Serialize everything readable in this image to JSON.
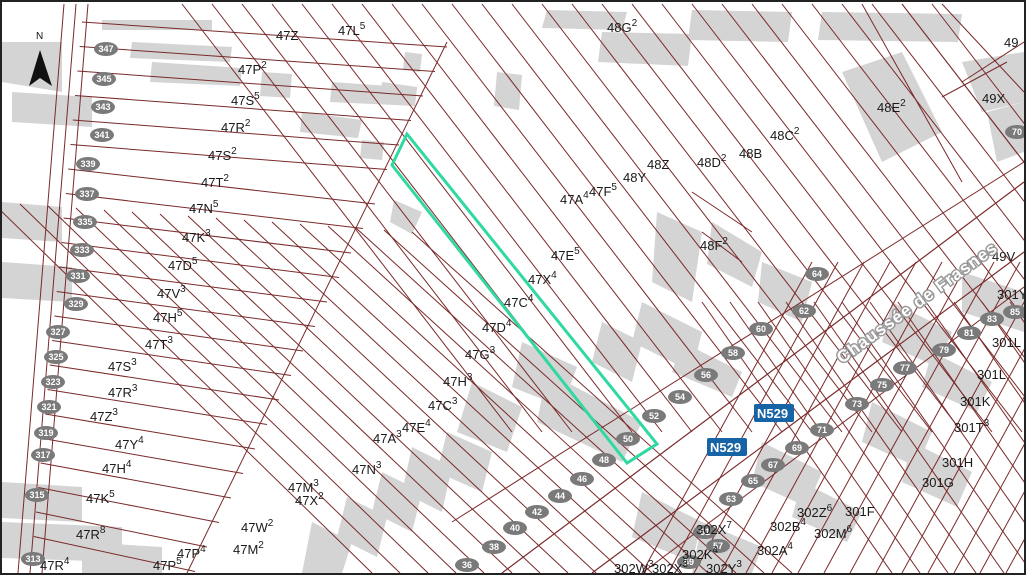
{
  "map": {
    "north_label": "N",
    "road_name": "Chaussée de Frasnes",
    "route_shield_1": "N529",
    "route_shield_2": "N529",
    "colors": {
      "parcel_line": "#7a2a2a",
      "building_fill": "#d4d4d4",
      "highlight": "#2fd9a0",
      "shield": "#1663a6"
    },
    "parcel_labels": [
      "47Z",
      "47L5",
      "48G2",
      "49",
      "47P2",
      "47S5",
      "47R2",
      "47S2",
      "47T2",
      "47N5",
      "47K3",
      "47D5",
      "47V3",
      "47H5",
      "47T3",
      "47S3",
      "47R3",
      "47Z3",
      "47Y4",
      "47H4",
      "47K5",
      "47R8",
      "47R4",
      "47P5",
      "47P4",
      "47M2",
      "47W2",
      "47X2",
      "47M3",
      "47N3",
      "47A3",
      "47E4",
      "47C3",
      "47H3",
      "47G3",
      "47D4",
      "47C4",
      "47X4",
      "47E5",
      "47A4",
      "47F5",
      "48Y",
      "48Z",
      "48D2",
      "48B",
      "48C2",
      "48F2",
      "48E2",
      "49X",
      "49V",
      "301Y",
      "301L",
      "301L",
      "301K",
      "301T3",
      "301H",
      "301G",
      "301F",
      "302Z6",
      "302M6",
      "302B4",
      "302A4",
      "302K4",
      "302X7",
      "302Y3",
      "302X3",
      "302W3"
    ],
    "house_numbers": [
      "347",
      "345",
      "343",
      "341",
      "339",
      "337",
      "335",
      "333",
      "331",
      "329",
      "327",
      "325",
      "323",
      "321",
      "319",
      "317",
      "315",
      "313",
      "40",
      "42",
      "44",
      "46",
      "48",
      "50",
      "52",
      "54",
      "56",
      "58",
      "60",
      "62",
      "64",
      "38",
      "36",
      "61",
      "63",
      "65",
      "67",
      "69",
      "71",
      "73",
      "75",
      "77",
      "79",
      "81",
      "83",
      "85",
      "59",
      "57",
      "70"
    ]
  }
}
